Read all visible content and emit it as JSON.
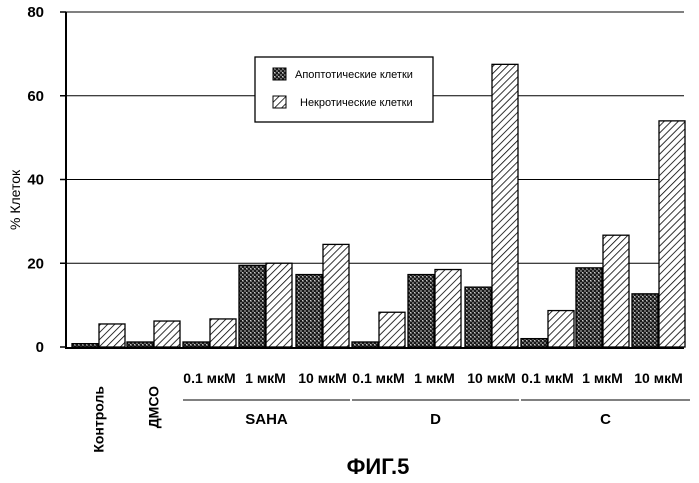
{
  "chart_data": {
    "type": "bar",
    "ylabel": "% Клеток",
    "ylim": [
      0,
      80
    ],
    "yticks": [
      0,
      20,
      40,
      60,
      80
    ],
    "grid": "horizontal",
    "legend_position": "top-center",
    "categories": [
      "Контроль",
      "ДМСО",
      "0.1 мкМ",
      "1 мкМ",
      "10 мкМ",
      "0.1 мкМ",
      "1 мкМ",
      "10 мкМ",
      "0.1 мкМ",
      "1 мкМ",
      "10 мкМ"
    ],
    "groups": [
      {
        "label": "SAHA",
        "categories": [
          "0.1 мкМ",
          "1 мкМ",
          "10 мкМ"
        ]
      },
      {
        "label": "D",
        "categories": [
          "0.1 мкМ",
          "1 мкМ",
          "10 мкМ"
        ]
      },
      {
        "label": "C",
        "categories": [
          "0.1 мкМ",
          "1 мкМ",
          "10 мкМ"
        ]
      }
    ],
    "series": [
      {
        "name": "Апоптотические клетки",
        "pattern": "crosshatch",
        "values": [
          0.8,
          1.2,
          1.2,
          19.5,
          17.3,
          1.2,
          17.3,
          14.3,
          2.0,
          18.9,
          12.7
        ]
      },
      {
        "name": "Некротические клетки",
        "pattern": "diagonal",
        "values": [
          5.5,
          6.2,
          6.7,
          20.0,
          24.5,
          8.3,
          18.5,
          67.5,
          8.7,
          26.7,
          54.0
        ]
      }
    ]
  },
  "caption": "ФИГ.5"
}
